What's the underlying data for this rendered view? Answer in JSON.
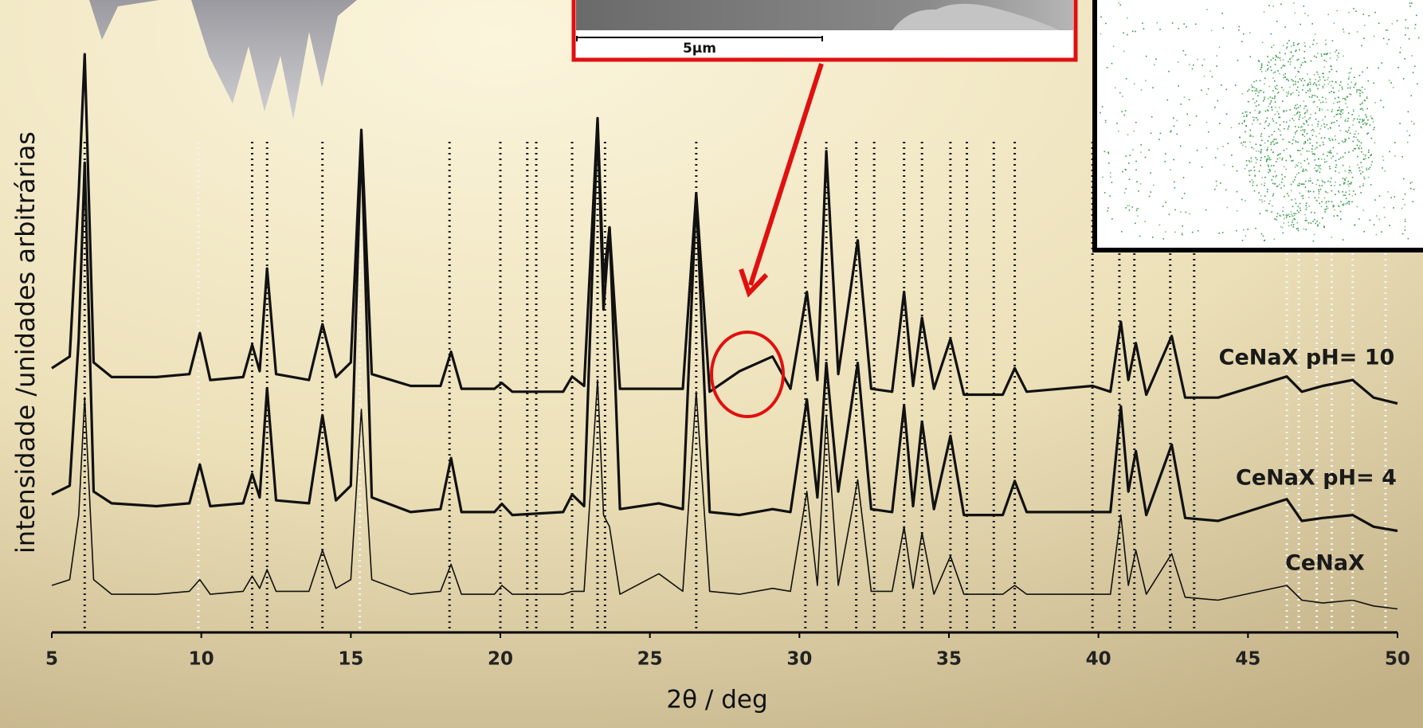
{
  "chart_data": {
    "type": "line",
    "x_label": "2θ / deg",
    "y_label": "intensidade /unidades arbitrárias",
    "xlim": [
      5,
      50
    ],
    "xticks": [
      5,
      10,
      15,
      20,
      25,
      30,
      35,
      40,
      45,
      50
    ],
    "ylim": [
      0,
      100
    ],
    "x": [
      5,
      5.6,
      5.9,
      6.1,
      6.4,
      7,
      8.5,
      9.6,
      9.95,
      10.3,
      11.4,
      11.7,
      11.95,
      12.2,
      12.5,
      13.6,
      14.05,
      14.5,
      15,
      15.35,
      15.7,
      17,
      18,
      18.35,
      18.7,
      19.8,
      20.05,
      20.4,
      22.1,
      22.4,
      22.8,
      23.25,
      23.45,
      23.65,
      24,
      25.3,
      26.1,
      26.55,
      27,
      28,
      29.1,
      29.7,
      30.25,
      30.6,
      30.9,
      31.3,
      31.95,
      32.4,
      33.1,
      33.5,
      33.8,
      34.1,
      34.5,
      35.05,
      35.5,
      36.8,
      37.2,
      37.6,
      39.8,
      40.4,
      40.75,
      41,
      41.25,
      41.6,
      42.45,
      42.9,
      44,
      46.3,
      46.8,
      47.5,
      48.5,
      49.2,
      50
    ],
    "series": [
      {
        "name": "CeNaX pH= 10",
        "color": "#111111",
        "values": [
          45,
          47,
          75,
          98.5,
          46,
          43.5,
          43.5,
          44,
          51,
          43,
          43.5,
          49,
          44.5,
          62,
          44,
          43,
          52.5,
          43.5,
          46,
          85.6,
          44,
          42,
          42,
          47.8,
          41.5,
          41.5,
          42.5,
          41,
          41,
          43.6,
          42,
          87.6,
          60,
          69,
          41.5,
          41.5,
          41.5,
          74.8,
          41,
          44.5,
          47,
          41.5,
          58,
          43,
          82,
          44,
          66.8,
          41.5,
          41,
          58,
          42,
          53.6,
          41.5,
          50,
          40.5,
          40.5,
          45,
          41,
          42,
          41,
          52.9,
          43,
          49.3,
          40.5,
          50.5,
          40,
          40,
          43.6,
          41,
          42,
          43,
          40,
          39
        ]
      },
      {
        "name": "CeNaX pH= 4",
        "color": "#111111",
        "values": [
          23.5,
          25,
          50,
          80,
          24,
          22,
          21.5,
          22,
          28.6,
          21.5,
          22,
          27,
          23,
          41.6,
          22.5,
          22,
          37,
          22.5,
          25,
          84,
          23,
          20.5,
          21,
          29.7,
          20.5,
          20.5,
          21.9,
          20,
          20.5,
          23.5,
          21.5,
          86.9,
          55,
          69,
          21,
          22,
          21,
          74.5,
          20.5,
          20,
          21,
          20.5,
          39.7,
          23,
          45.9,
          24,
          45.9,
          21,
          20.5,
          38.6,
          21.5,
          35.9,
          21,
          33.5,
          20,
          20,
          25.8,
          20.5,
          20.5,
          20.5,
          38.5,
          24,
          30.9,
          20,
          32,
          19.5,
          19,
          22.7,
          19,
          19.5,
          20,
          18,
          17.3
        ]
      },
      {
        "name": "CeNaX",
        "color": "#111111",
        "values": [
          8,
          9,
          20,
          40,
          9,
          6.5,
          6.5,
          7,
          9,
          6.5,
          7,
          9.6,
          7.5,
          10.7,
          7,
          7,
          14,
          7.5,
          9,
          38,
          9,
          6.5,
          7,
          11.6,
          6.5,
          6.5,
          8,
          6.5,
          6.5,
          7,
          7,
          43,
          20,
          18,
          6.5,
          10,
          7,
          41,
          7,
          6.5,
          7.5,
          7,
          24,
          8,
          37,
          8,
          26,
          7,
          7,
          18,
          7.5,
          17,
          6.5,
          13,
          6.5,
          6.5,
          8,
          6.5,
          6.5,
          6.5,
          20,
          8,
          14,
          6.5,
          13.4,
          6,
          5.5,
          8,
          5.5,
          5,
          5.5,
          4.5,
          4
        ]
      }
    ],
    "reference_lines": [
      6.1,
      11.7,
      12.2,
      14.05,
      18.3,
      20,
      20.9,
      21.2,
      22.4,
      23.25,
      23.5,
      26.55,
      30.2,
      30.9,
      31.9,
      32.5,
      33.5,
      34.1,
      35.05,
      35.6,
      36.5,
      37.2,
      39.8,
      40.7,
      41.2,
      42.4,
      43.2
    ],
    "reference_lines_light": [
      9.9,
      15.3,
      46.3,
      46.7,
      47.3,
      47.8,
      48.5,
      49.6
    ]
  },
  "inset": {
    "scale_label": "5µm"
  }
}
